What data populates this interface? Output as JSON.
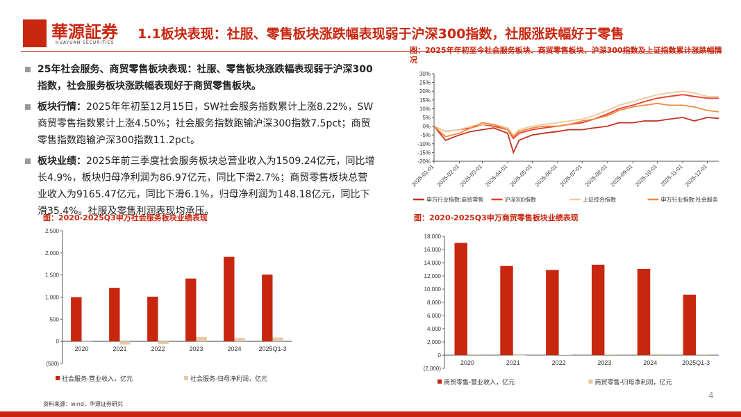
{
  "header": {
    "logo_cn": "華源証券",
    "logo_en": "HUAYUAN SECURITIES",
    "title": "1.1板块表现：社服、零售板块涨跌幅表现弱于沪深300指数，社服涨跌幅好于零售"
  },
  "bullets": [
    {
      "label": "25年社会服务、商贸零售板块表现：社服、零售板块涨跌幅表现弱于沪深300指数，社会服务板块涨跌幅表现好于商贸零售板块。"
    },
    {
      "label": "板块行情：",
      "text": "2025年年初至12月15日，SW社会服务指数累计上涨8.22%，SW商贸零售指数累计上涨4.50%；社会服务指数跑输沪深300指数7.5pct；商贸零售指数跑输沪深300指数11.2pct。"
    },
    {
      "label": "板块业绩：",
      "text": "2025年前三季度社会服务板块总营业收入为1509.24亿元，同比增长4.9%，板块归母净利润为86.97亿元，同比下滑2.7%；商贸零售板块总营业收入为9165.47亿元，同比下滑6.1%，归母净利润为148.18亿元，同比下滑35.4%。社服及零售利润表现均承压。"
    }
  ],
  "chart_data": [
    {
      "type": "line",
      "title": "图：2025年年初至今社会服务板块、商贸零售板块、沪深300指数及上证指数累计涨跌幅情况",
      "x": [
        "2025-01-01",
        "2025-01-15",
        "2025-02-01",
        "2025-02-15",
        "2025-03-01",
        "2025-03-15",
        "2025-04-01",
        "2025-04-08",
        "2025-04-15",
        "2025-05-01",
        "2025-05-15",
        "2025-06-01",
        "2025-06-15",
        "2025-07-01",
        "2025-07-15",
        "2025-08-01",
        "2025-08-15",
        "2025-09-01",
        "2025-09-15",
        "2025-10-01",
        "2025-10-15",
        "2025-11-01",
        "2025-11-15",
        "2025-12-01",
        "2025-12-15"
      ],
      "xlim": [
        "2025-01-01",
        "2025-12-15"
      ],
      "xticks": [
        "2025-01-01",
        "2025-02-01",
        "2025-03-01",
        "2025-04-01",
        "2025-05-01",
        "2025-06-01",
        "2025-07-01",
        "2025-08-01",
        "2025-09-01",
        "2025-10-01",
        "2025-11-01",
        "2025-12-01"
      ],
      "ylim": [
        -20,
        30
      ],
      "yticks": [
        {
          "value": -20,
          "label": "-20%"
        },
        {
          "value": -15,
          "label": "-15%"
        },
        {
          "value": -10,
          "label": "-10%"
        },
        {
          "value": -5,
          "label": "-5%"
        },
        {
          "value": 0,
          "label": "0%"
        },
        {
          "value": 5,
          "label": "5%"
        },
        {
          "value": 10,
          "label": "10%"
        },
        {
          "value": 15,
          "label": "15%"
        },
        {
          "value": 20,
          "label": "20%"
        },
        {
          "value": 25,
          "label": "25%"
        },
        {
          "value": 30,
          "label": "30%"
        }
      ],
      "series": [
        {
          "name": "申万行业指数:商贸零售",
          "color": "#c0311f",
          "values": [
            0,
            -8,
            -5,
            -3,
            -2,
            -1,
            -4,
            -15,
            -8,
            -5,
            -4,
            -3,
            -2,
            -2,
            -1,
            0,
            2,
            2,
            3,
            3,
            4,
            5,
            3,
            5,
            4.5
          ]
        },
        {
          "name": "沪深300指数",
          "color": "#e8402a",
          "values": [
            0,
            -3,
            -2,
            -1,
            1,
            0,
            -2,
            -7,
            -4,
            -2,
            -1,
            0,
            1,
            2,
            4,
            7,
            10,
            12,
            14,
            16,
            17,
            18,
            17,
            16,
            16
          ]
        },
        {
          "name": "上证综合指数",
          "color": "#f0c8a0",
          "values": [
            0,
            -3,
            -2,
            0,
            1,
            1,
            -1,
            -5,
            -2,
            0,
            1,
            2,
            3,
            4,
            6,
            9,
            12,
            14,
            16,
            18,
            19,
            20,
            19,
            17,
            17
          ]
        },
        {
          "name": "申万行业指数:社会服务",
          "color": "#f08a3c",
          "values": [
            0,
            -6,
            -4,
            -1,
            2,
            1,
            -2,
            -6,
            -3,
            -1,
            0,
            0,
            1,
            3,
            4,
            6,
            9,
            11,
            12,
            13,
            12,
            12,
            11,
            9,
            8.22
          ]
        }
      ]
    },
    {
      "type": "bar",
      "title": "图：2020-2025Q3申万社会服务板块业绩表现",
      "categories": [
        "2020",
        "2021",
        "2022",
        "2023",
        "2024",
        "2025Q1-3"
      ],
      "ylim": [
        -500,
        2500
      ],
      "yticks": [
        {
          "value": -500,
          "label": "(500)"
        },
        0,
        500,
        {
          "value": 1000,
          "label": "1,000"
        },
        {
          "value": 1500,
          "label": "1,500"
        },
        {
          "value": 2000,
          "label": "2,000"
        },
        {
          "value": 2500,
          "label": "2,500"
        }
      ],
      "series": [
        {
          "name": "社会服务-营业收入，亿元",
          "color": "#c8260f",
          "values": [
            1000,
            1210,
            1010,
            1420,
            1910,
            1509.24
          ]
        },
        {
          "name": "社会服务-归母净利润，亿元",
          "color": "#e8c9a8",
          "values": [
            -10,
            -70,
            -60,
            100,
            80,
            86.97
          ]
        }
      ]
    },
    {
      "type": "bar",
      "title": "图：2020-2025Q3申万商贸零售板块业绩表现",
      "categories": [
        "2020",
        "2021",
        "2022",
        "2023",
        "2024",
        "2025Q1-3"
      ],
      "ylim": [
        -2000,
        18000
      ],
      "yticks": [
        {
          "value": -2000,
          "label": "(2,000)"
        },
        0,
        {
          "value": 2000,
          "label": "2,000"
        },
        {
          "value": 4000,
          "label": "4,000"
        },
        {
          "value": 6000,
          "label": "6,000"
        },
        {
          "value": 8000,
          "label": "8,000"
        },
        {
          "value": 10000,
          "label": "10,000"
        },
        {
          "value": 12000,
          "label": "12,000"
        },
        {
          "value": 14000,
          "label": "14,000"
        },
        {
          "value": 16000,
          "label": "16,000"
        },
        {
          "value": 18000,
          "label": "18,000"
        }
      ],
      "series": [
        {
          "name": "商贸零售-营业收入，亿元",
          "color": "#c8260f",
          "values": [
            17000,
            13500,
            12900,
            13700,
            13050,
            9165.47
          ]
        },
        {
          "name": "商贸零售-归母净利润，亿元",
          "color": "#e8c9a8",
          "values": [
            150,
            -50,
            50,
            120,
            200,
            148.18
          ]
        }
      ]
    }
  ],
  "source": "资料来源：wind，华源证券研究",
  "page_number": "4"
}
